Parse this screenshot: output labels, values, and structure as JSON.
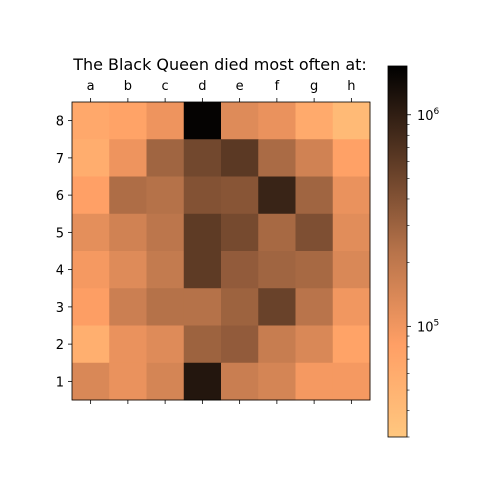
{
  "chart_data": {
    "type": "heatmap",
    "title": "The Black Queen died most often at:",
    "x_ticks": [
      "a",
      "b",
      "c",
      "d",
      "e",
      "f",
      "g",
      "h"
    ],
    "y_ticks": [
      "8",
      "7",
      "6",
      "5",
      "4",
      "3",
      "2",
      "1"
    ],
    "color_scale": "log",
    "colormap": "copper_r",
    "colorbar_range": [
      30000,
      1700000
    ],
    "colorbar_ticks": [
      {
        "value": 1000000,
        "label": "10^6"
      },
      {
        "value": 100000,
        "label": "10^5"
      }
    ],
    "values": [
      [
        65000,
        75000,
        105000,
        1600000,
        130000,
        110000,
        62000,
        42000
      ],
      [
        58000,
        105000,
        290000,
        480000,
        620000,
        260000,
        160000,
        78000
      ],
      [
        80000,
        250000,
        230000,
        400000,
        380000,
        900000,
        290000,
        110000
      ],
      [
        120000,
        160000,
        210000,
        600000,
        460000,
        270000,
        420000,
        125000
      ],
      [
        95000,
        130000,
        190000,
        600000,
        340000,
        290000,
        270000,
        140000
      ],
      [
        85000,
        170000,
        230000,
        230000,
        300000,
        530000,
        220000,
        100000
      ],
      [
        55000,
        110000,
        130000,
        300000,
        340000,
        180000,
        140000,
        75000
      ],
      [
        140000,
        110000,
        150000,
        1150000,
        175000,
        150000,
        95000,
        95000
      ]
    ]
  }
}
